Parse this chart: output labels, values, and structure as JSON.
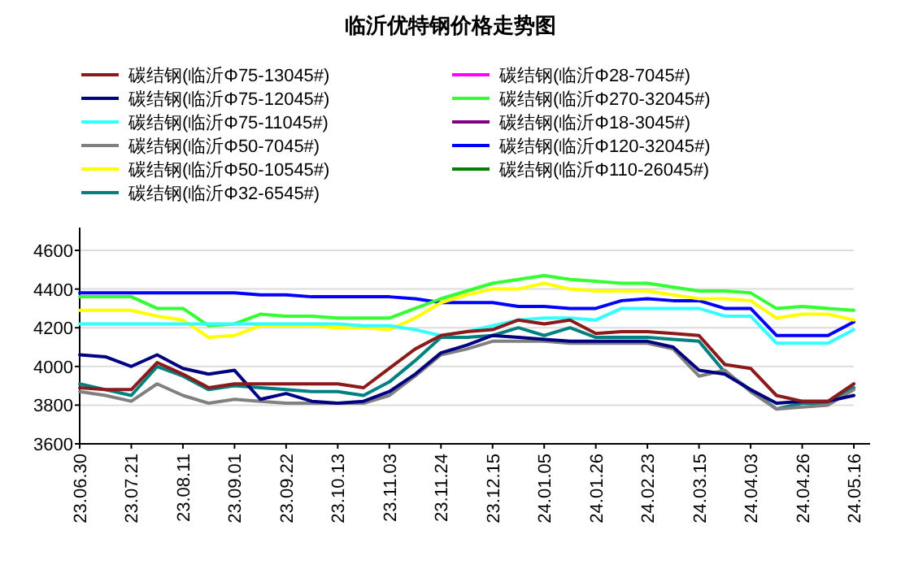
{
  "chart_data": {
    "type": "line",
    "title": "临沂优特钢价格走势图",
    "legend": "top",
    "grid": "y",
    "ylim": [
      3600,
      4600
    ],
    "yticks": [
      3600,
      3800,
      4000,
      4200,
      4400,
      4600
    ],
    "categories": [
      "23.06.30",
      null,
      "23.07.21",
      null,
      "23.08.11",
      null,
      "23.09.01",
      null,
      "23.09.22",
      null,
      "23.10.13",
      null,
      "23.11.03",
      null,
      "23.11.24",
      null,
      "23.12.15",
      null,
      "24.01.05",
      null,
      "24.01.26",
      null,
      "24.02.23",
      null,
      "24.03.15",
      null,
      "24.04.03",
      null,
      "24.04.26",
      null,
      "24.05.16"
    ],
    "series": [
      {
        "name": "碳结钢(临沂Φ75-13045#)",
        "color": "#8b1a1a",
        "values": [
          3890,
          3880,
          3880,
          4020,
          3960,
          3890,
          3910,
          3910,
          3910,
          3910,
          3910,
          3890,
          3990,
          4090,
          4160,
          4180,
          4190,
          4240,
          4220,
          4240,
          4170,
          4180,
          4180,
          4170,
          4160,
          4010,
          3990,
          3850,
          3820,
          3820,
          3910
        ]
      },
      {
        "name": "碳结钢(临沂Φ75-12045#)",
        "color": "#000080",
        "values": [
          4060,
          4050,
          4000,
          4060,
          3990,
          3960,
          3980,
          3830,
          3860,
          3820,
          3810,
          3820,
          3870,
          3960,
          4070,
          4110,
          4160,
          4150,
          4140,
          4130,
          4130,
          4130,
          4130,
          4100,
          3980,
          3960,
          3880,
          3810,
          3820,
          3820,
          3850
        ]
      },
      {
        "name": "碳结钢(临沂Φ75-11045#)",
        "color": "#33ffff",
        "values": [
          4220,
          4220,
          4220,
          4220,
          4220,
          4220,
          4220,
          4220,
          4220,
          4220,
          4220,
          4210,
          4210,
          4190,
          4160,
          4180,
          4210,
          4240,
          4250,
          4250,
          4240,
          4300,
          4300,
          4300,
          4300,
          4260,
          4260,
          4120,
          4120,
          4120,
          4190
        ]
      },
      {
        "name": "碳结钢(临沂Φ50-7045#)",
        "color": "#808080",
        "values": [
          3870,
          3850,
          3820,
          3910,
          3850,
          3810,
          3830,
          3820,
          3810,
          3810,
          3810,
          3810,
          3850,
          3950,
          4060,
          4090,
          4130,
          4130,
          4130,
          4120,
          4120,
          4120,
          4120,
          4090,
          3950,
          3980,
          3870,
          3780,
          3790,
          3800,
          3880
        ]
      },
      {
        "name": "碳结钢(临沂Φ50-10545#)",
        "color": "#ffff00",
        "values": [
          4290,
          4290,
          4290,
          4260,
          4240,
          4150,
          4160,
          4210,
          4210,
          4210,
          4200,
          4200,
          4190,
          4250,
          4330,
          4370,
          4400,
          4400,
          4430,
          4400,
          4390,
          4390,
          4390,
          4370,
          4350,
          4350,
          4340,
          4250,
          4270,
          4270,
          4240
        ]
      },
      {
        "name": "碳结钢(临沂Φ32-6545#)",
        "color": "#008080",
        "values": [
          3910,
          3880,
          3850,
          4000,
          3950,
          3880,
          3900,
          3890,
          3880,
          3870,
          3870,
          3850,
          3920,
          4030,
          4150,
          4150,
          4160,
          4200,
          4160,
          4200,
          4150,
          4150,
          4150,
          4140,
          4130,
          3970,
          3880,
          3780,
          3810,
          3810,
          3890
        ]
      },
      {
        "name": "碳结钢(临沂Φ28-7045#)",
        "color": "#ff00ff",
        "values": [
          null,
          null,
          null,
          null,
          null,
          null,
          null,
          null,
          null,
          null,
          null,
          null,
          null,
          null,
          null,
          null,
          null,
          null,
          null,
          null,
          null,
          null,
          null,
          null,
          null,
          null,
          null,
          null,
          null,
          null,
          null
        ]
      },
      {
        "name": "碳结钢(临沂Φ270-32045#)",
        "color": "#33ff33",
        "values": [
          4360,
          4360,
          4360,
          4300,
          4300,
          4210,
          4220,
          4270,
          4260,
          4260,
          4250,
          4250,
          4250,
          4300,
          4350,
          4390,
          4430,
          4450,
          4470,
          4450,
          4440,
          4430,
          4430,
          4410,
          4390,
          4390,
          4380,
          4300,
          4310,
          4300,
          4290
        ]
      },
      {
        "name": "碳结钢(临沂Φ18-3045#)",
        "color": "#800080",
        "values": [
          null,
          null,
          null,
          null,
          null,
          null,
          null,
          null,
          null,
          null,
          null,
          null,
          null,
          null,
          null,
          null,
          null,
          null,
          null,
          null,
          null,
          null,
          null,
          null,
          null,
          null,
          null,
          null,
          null,
          null,
          null
        ]
      },
      {
        "name": "碳结钢(临沂Φ120-32045#)",
        "color": "#0000ff",
        "values": [
          4380,
          4380,
          4380,
          4380,
          4380,
          4380,
          4380,
          4370,
          4370,
          4360,
          4360,
          4360,
          4360,
          4350,
          4330,
          4330,
          4330,
          4310,
          4310,
          4300,
          4300,
          4340,
          4350,
          4340,
          4340,
          4300,
          4300,
          4160,
          4160,
          4160,
          4230
        ]
      },
      {
        "name": "碳结钢(临沂Φ110-26045#)",
        "color": "#008000",
        "values": [
          null,
          null,
          null,
          null,
          null,
          null,
          null,
          null,
          null,
          null,
          null,
          null,
          null,
          null,
          null,
          null,
          null,
          null,
          null,
          null,
          null,
          null,
          null,
          null,
          null,
          null,
          null,
          null,
          null,
          null,
          null
        ]
      }
    ]
  }
}
